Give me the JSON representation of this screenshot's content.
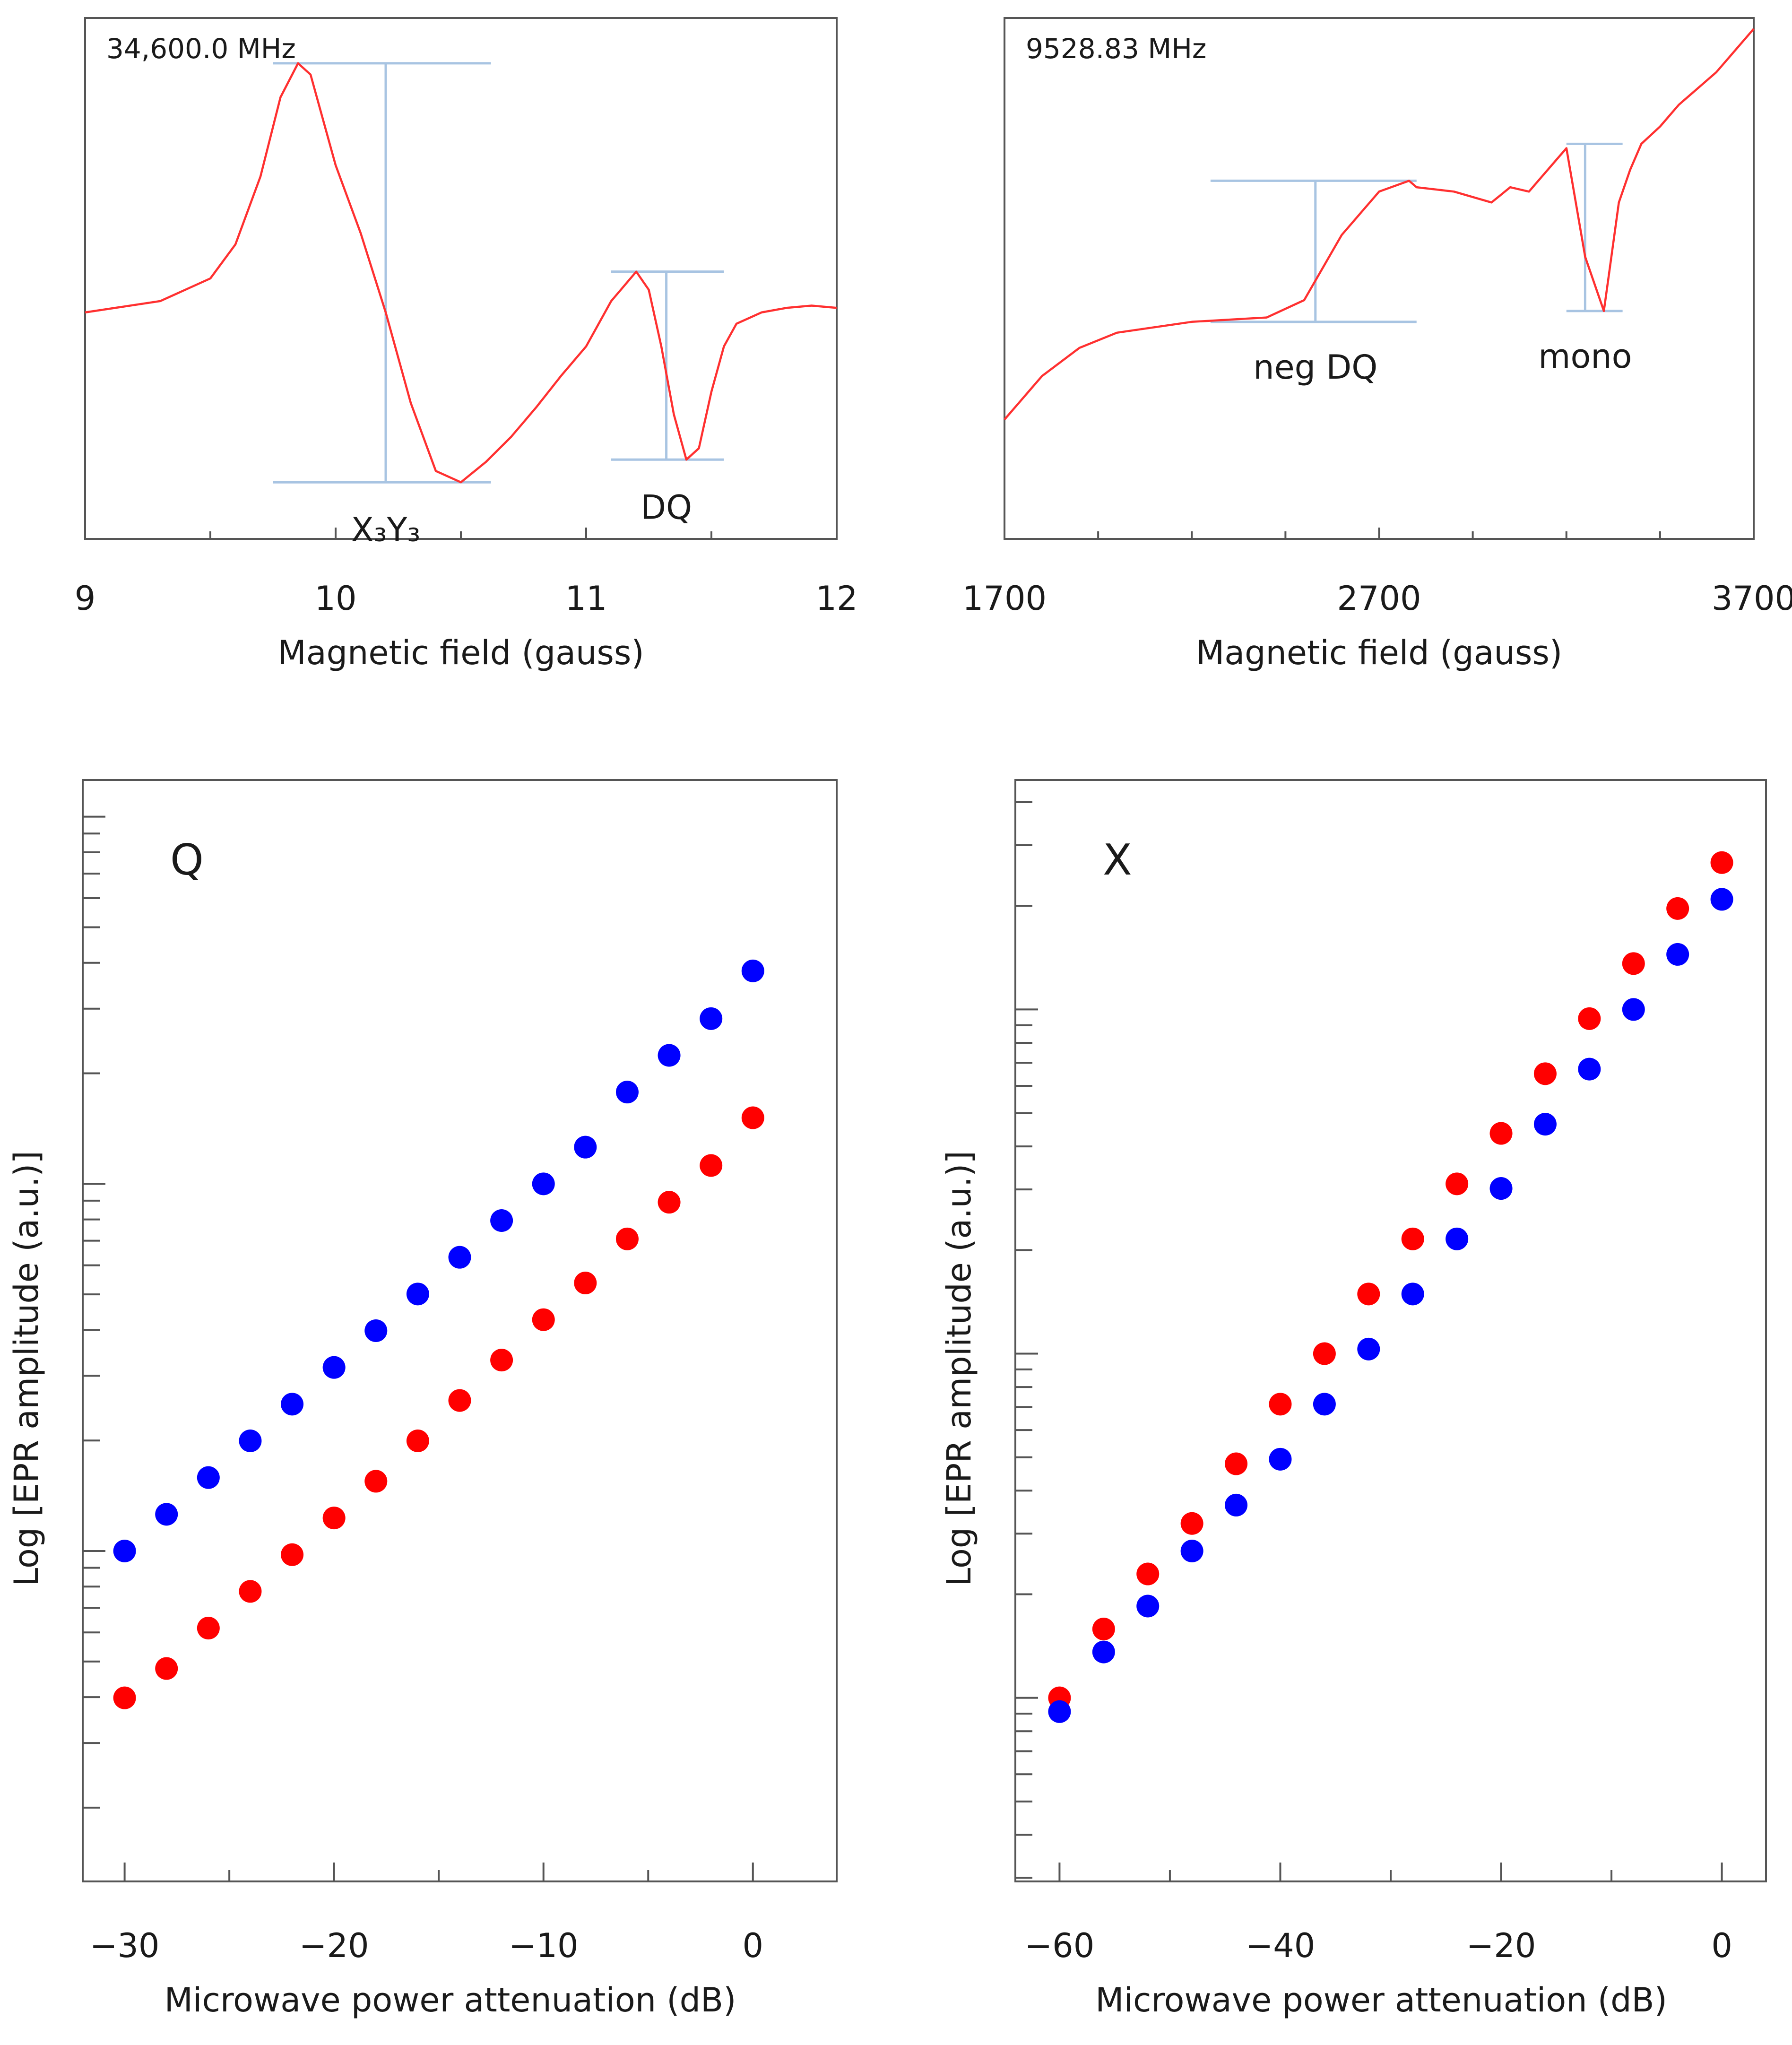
{
  "chart_data": [
    {
      "id": "q-spectrum",
      "type": "line",
      "frequency_label": "34,600.0 MHz",
      "xlabel": "Magnetic field (gauss)",
      "ylabel": "",
      "xlim": [
        9,
        12
      ],
      "ylim": [
        -1.0,
        1.3
      ],
      "x_ticks": [
        9,
        10,
        11,
        12
      ],
      "series": [
        {
          "name": "EPR spectrum",
          "color": "#ff3030",
          "x": [
            9.0,
            9.3,
            9.5,
            9.6,
            9.7,
            9.78,
            9.85,
            9.9,
            9.95,
            10.0,
            10.1,
            10.2,
            10.3,
            10.4,
            10.5,
            10.6,
            10.7,
            10.8,
            10.9,
            11.0,
            11.1,
            11.2,
            11.25,
            11.3,
            11.35,
            11.4,
            11.45,
            11.5,
            11.55,
            11.6,
            11.7,
            11.8,
            11.9,
            12.0
          ],
          "y": [
            0.0,
            0.05,
            0.15,
            0.3,
            0.6,
            0.95,
            1.1,
            1.05,
            0.85,
            0.65,
            0.35,
            0.0,
            -0.4,
            -0.7,
            -0.75,
            -0.66,
            -0.55,
            -0.42,
            -0.28,
            -0.15,
            0.05,
            0.18,
            0.1,
            -0.15,
            -0.45,
            -0.65,
            -0.6,
            -0.35,
            -0.15,
            -0.05,
            0.0,
            0.02,
            0.03,
            0.02
          ]
        }
      ],
      "annotations": [
        {
          "label": "X₃Y₃",
          "field_range": [
            9.75,
            10.62
          ],
          "field_center": 10.2,
          "amplitude_top": 1.1,
          "amplitude_bottom": -0.75
        },
        {
          "label": "DQ",
          "field_range": [
            11.1,
            11.55
          ],
          "field_center": 11.32,
          "amplitude_top": 0.18,
          "amplitude_bottom": -0.65
        }
      ]
    },
    {
      "id": "x-spectrum",
      "type": "line",
      "frequency_label": "9528.83 MHz",
      "xlabel": "Magnetic field (gauss)",
      "ylabel": "",
      "xlim": [
        1700,
        3700
      ],
      "ylim": [
        -1.0,
        1.4
      ],
      "x_ticks": [
        1700,
        2700,
        3700
      ],
      "series": [
        {
          "name": "EPR spectrum",
          "color": "#ff3030",
          "x": [
            1700,
            1800,
            1900,
            2000,
            2200,
            2400,
            2500,
            2600,
            2700,
            2780,
            2800,
            2900,
            3000,
            3050,
            3100,
            3150,
            3200,
            3250,
            3300,
            3320,
            3340,
            3370,
            3400,
            3450,
            3500,
            3600,
            3700
          ],
          "y": [
            -0.45,
            -0.25,
            -0.12,
            -0.05,
            0.0,
            0.02,
            0.1,
            0.4,
            0.6,
            0.65,
            0.62,
            0.6,
            0.55,
            0.62,
            0.6,
            0.7,
            0.8,
            0.3,
            0.05,
            0.3,
            0.55,
            0.7,
            0.82,
            0.9,
            1.0,
            1.15,
            1.35
          ]
        }
      ],
      "annotations": [
        {
          "label": "neg DQ",
          "field_range": [
            2250,
            2800
          ],
          "field_center": 2530,
          "amplitude_top": 0.65,
          "amplitude_bottom": 0.0
        },
        {
          "label": "mono",
          "field_range": [
            3200,
            3350
          ],
          "field_center": 3250,
          "amplitude_top": 0.82,
          "amplitude_bottom": 0.05
        }
      ]
    },
    {
      "id": "q-power",
      "type": "scatter",
      "panel_label": "Q",
      "xlabel": "Microwave power attenuation (dB)",
      "ylabel": "Log [EPR amplitude (a.u.)]",
      "xlim": [
        -32,
        4
      ],
      "x_ticks": [
        -30,
        -20,
        -10,
        0
      ],
      "x_tick_labels": [
        "−30",
        "−20",
        "−10",
        "0"
      ],
      "ylim": [
        -0.9,
        2.1
      ],
      "series": [
        {
          "name": "blue",
          "color": "#0000ff",
          "x": [
            -30,
            -28,
            -26,
            -24,
            -22,
            -20,
            -18,
            -16,
            -14,
            -12,
            -10,
            -8,
            -6,
            -4,
            -2,
            0
          ],
          "y": [
            0.0,
            0.1,
            0.2,
            0.3,
            0.4,
            0.5,
            0.6,
            0.7,
            0.8,
            0.9,
            1.0,
            1.1,
            1.25,
            1.35,
            1.45,
            1.58
          ]
        },
        {
          "name": "red",
          "color": "#ff0000",
          "x": [
            -30,
            -28,
            -26,
            -24,
            -22,
            -20,
            -18,
            -16,
            -14,
            -12,
            -10,
            -8,
            -6,
            -4,
            -2,
            0
          ],
          "y": [
            -0.4,
            -0.32,
            -0.21,
            -0.11,
            -0.01,
            0.09,
            0.19,
            0.3,
            0.41,
            0.52,
            0.63,
            0.73,
            0.85,
            0.95,
            1.05,
            1.18
          ]
        }
      ]
    },
    {
      "id": "x-power",
      "type": "scatter",
      "panel_label": "X",
      "xlabel": "Microwave power attenuation (dB)",
      "ylabel": "Log [EPR amplitude (a.u.)]",
      "xlim": [
        -64,
        4
      ],
      "x_ticks": [
        -60,
        -40,
        -20,
        0
      ],
      "x_tick_labels": [
        "−60",
        "−40",
        "−20",
        "0"
      ],
      "ylim": [
        -0.4,
        2.0
      ],
      "series": [
        {
          "name": "red",
          "color": "#ff0000",
          "x": [
            -60,
            -56,
            -52,
            -48,
            -44,
            -40,
            -36,
            -32,
            -28,
            -24,
            -20,
            -16,
            -12,
            -8,
            -4,
            0
          ],
          "y": [
            0.0,
            0.15,
            0.27,
            0.38,
            0.51,
            0.64,
            0.75,
            0.88,
            1.0,
            1.12,
            1.23,
            1.36,
            1.48,
            1.6,
            1.72,
            1.82
          ]
        },
        {
          "name": "blue",
          "color": "#0000ff",
          "x": [
            -60,
            -56,
            -52,
            -48,
            -44,
            -40,
            -36,
            -32,
            -28,
            -24,
            -20,
            -16,
            -12,
            -8,
            -4,
            0
          ],
          "y": [
            -0.03,
            0.1,
            0.2,
            0.32,
            0.42,
            0.52,
            0.64,
            0.76,
            0.88,
            1.0,
            1.11,
            1.25,
            1.37,
            1.5,
            1.62,
            1.74
          ]
        }
      ]
    }
  ]
}
